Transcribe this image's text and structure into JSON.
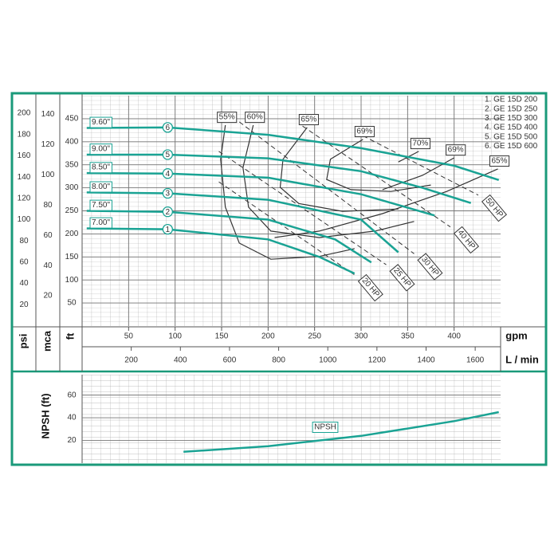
{
  "chart_data": [
    {
      "type": "line",
      "xlabel": "gpm",
      "xlim": [
        0,
        450
      ],
      "xticks": [
        50,
        100,
        150,
        200,
        250,
        300,
        350,
        400
      ],
      "x2label": "L / min",
      "x2lim": [
        0,
        1703.4
      ],
      "x2ticks": [
        200,
        400,
        600,
        800,
        1000,
        1200,
        1400,
        1600
      ],
      "ylabel": "ft",
      "ylim": [
        0,
        500
      ],
      "yticks": [
        50,
        100,
        150,
        200,
        250,
        300,
        350,
        400,
        450
      ],
      "y2label": "mca",
      "y2lim": [
        0,
        152.4
      ],
      "y2ticks": [
        20,
        40,
        60,
        80,
        100,
        120,
        140
      ],
      "y3label": "psi",
      "y3lim": [
        0,
        216.5
      ],
      "y3ticks": [
        20,
        40,
        60,
        80,
        100,
        120,
        140,
        160,
        180,
        200
      ],
      "grid": true,
      "series": [
        {
          "name": "1. GE 15D 200",
          "marker": "1",
          "label": "7.00\"",
          "color": "#1aa394",
          "x": [
            5,
            92,
            200,
            255,
            293
          ],
          "values": [
            212,
            210,
            188,
            150,
            114
          ]
        },
        {
          "name": "2. GE 15D 250",
          "marker": "2",
          "label": "7.50\"",
          "color": "#1aa394",
          "x": [
            5,
            92,
            200,
            272,
            311
          ],
          "values": [
            250,
            248,
            231,
            188,
            138
          ]
        },
        {
          "name": "3. GE 15D 300",
          "marker": "3",
          "label": "8.00\"",
          "color": "#1aa394",
          "x": [
            5,
            92,
            200,
            300,
            340
          ],
          "values": [
            290,
            288,
            274,
            231,
            160
          ]
        },
        {
          "name": "4. GE 15D 400",
          "marker": "4",
          "label": "8.50\"",
          "color": "#1aa394",
          "x": [
            5,
            92,
            200,
            300,
            379
          ],
          "values": [
            332,
            331,
            322,
            286,
            240
          ]
        },
        {
          "name": "5. GE 15D 500",
          "marker": "5",
          "label": "9.00\"",
          "color": "#1aa394",
          "x": [
            5,
            92,
            200,
            300,
            366,
            418
          ],
          "values": [
            372,
            372,
            364,
            336,
            300,
            267
          ]
        },
        {
          "name": "6. GE 15D 600",
          "marker": "6",
          "label": "9.60\"",
          "color": "#1aa394",
          "x": [
            5,
            92,
            200,
            300,
            400,
            448
          ],
          "values": [
            430,
            431,
            415,
            386,
            348,
            317
          ]
        }
      ],
      "power_lines": [
        {
          "label": "20 HP",
          "x": [
            147,
            293
          ],
          "values": [
            313,
            111
          ]
        },
        {
          "label": "25 HP",
          "x": [
            147,
            327
          ],
          "values": [
            379,
            133
          ]
        },
        {
          "label": "30 HP",
          "x": [
            169,
            357
          ],
          "values": [
            443,
            157
          ]
        },
        {
          "label": "40 HP",
          "x": [
            237,
            396
          ],
          "values": [
            434,
            215
          ]
        },
        {
          "label": "50 HP",
          "x": [
            302,
            426
          ],
          "values": [
            413,
            284
          ]
        }
      ],
      "efficiency_curves": [
        {
          "label": "55%",
          "x": [
            154,
            149,
            154,
            169,
            203,
            255,
            293
          ],
          "values": [
            436,
            362,
            258,
            180,
            145,
            151,
            168
          ]
        },
        {
          "label": "60%",
          "x": [
            184,
            173,
            179,
            203,
            255,
            315,
            357
          ],
          "values": [
            436,
            344,
            258,
            206,
            192,
            206,
            227
          ]
        },
        {
          "label": "65%",
          "x": [
            242,
            216,
            213,
            233,
            280,
            340
          ],
          "values": [
            431,
            362,
            301,
            266,
            249,
            254
          ]
        },
        {
          "label": "69%",
          "x": [
            302,
            267,
            263,
            289,
            332,
            375
          ],
          "values": [
            405,
            362,
            318,
            296,
            292,
            306
          ]
        },
        {
          "label": "70%",
          "x": [
            362,
            340
          ],
          "values": [
            379,
            356
          ]
        },
        {
          "label": "69%",
          "x": [
            400,
            366,
            323
          ],
          "values": [
            365,
            327,
            296
          ]
        },
        {
          "label": "65%",
          "x": [
            447,
            392,
            323,
            255,
            207
          ],
          "values": [
            341,
            292,
            244,
            206,
            192
          ]
        }
      ]
    },
    {
      "type": "line",
      "ylabel": "NPSH (ft)",
      "xlim": [
        0,
        450
      ],
      "ylim": [
        0,
        78
      ],
      "yticks": [
        20,
        40,
        60
      ],
      "grid": true,
      "series": [
        {
          "name": "NPSH",
          "color": "#1aa394",
          "x": [
            109,
            200,
            300,
            400,
            448
          ],
          "values": [
            10,
            15,
            24,
            37,
            45
          ]
        }
      ]
    }
  ]
}
